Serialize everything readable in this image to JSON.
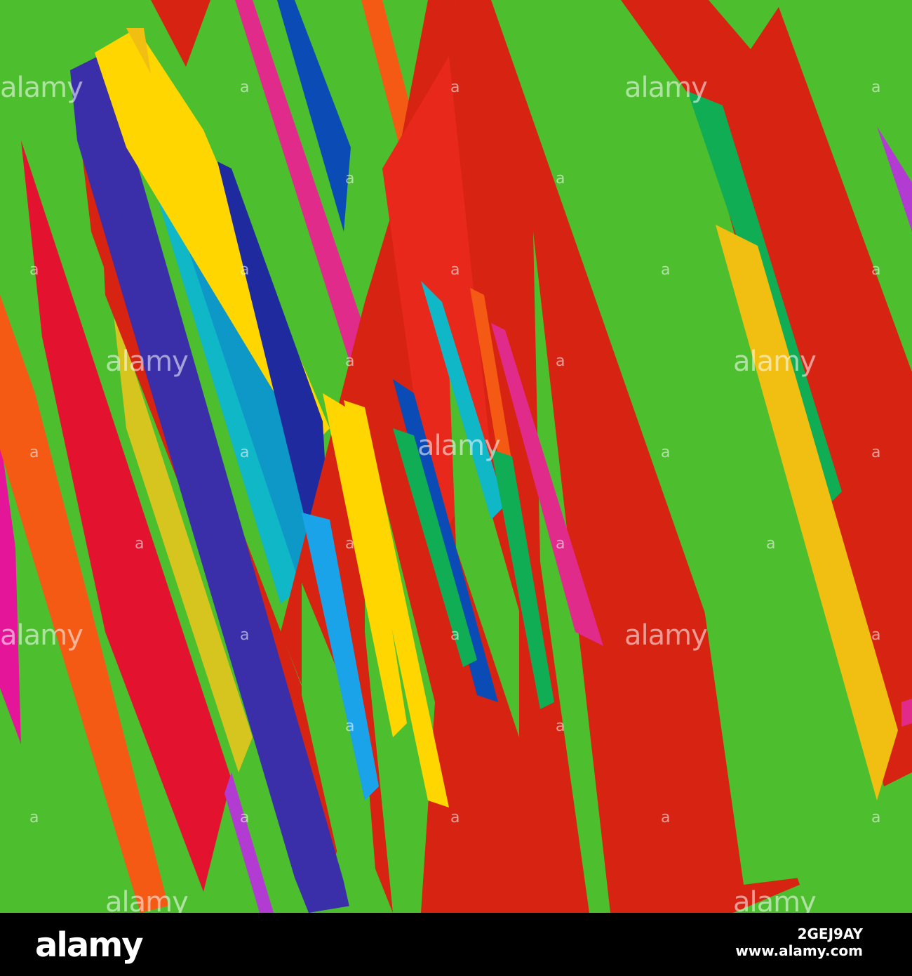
{
  "artwork": {
    "background_color": "#4dbe2e",
    "palette": [
      "#d62312",
      "#e3132f",
      "#f45a14",
      "#ffd600",
      "#f1bf11",
      "#3a2fa8",
      "#0a4bb5",
      "#10b7c7",
      "#e02b8a",
      "#10ad55",
      "#d6c51f",
      "#1aa3e8"
    ]
  },
  "watermark": {
    "text": "alamy",
    "mark": "a"
  },
  "footer": {
    "logo": "alamy",
    "image_id": "2GEJ9AY",
    "url": "www.alamy.com"
  }
}
